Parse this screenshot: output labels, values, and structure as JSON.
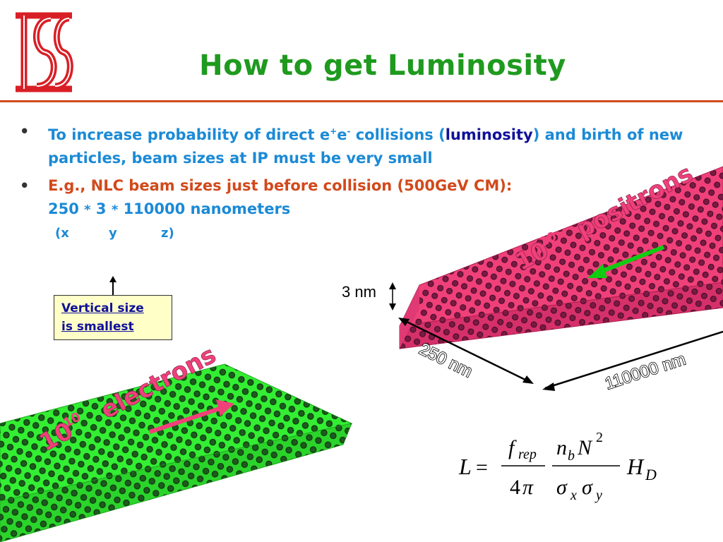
{
  "title": "How to get Luminosity",
  "logo": {
    "text": "ISS"
  },
  "bullets": [
    {
      "part1": "To increase probability of direct e",
      "sup1": "+",
      "part2": "e",
      "sup2": "-",
      "part3": " collisions (",
      "highlight": "luminosity",
      "part4": ") and birth of new particles, beam sizes at IP must be very small"
    },
    {
      "line1": "E.g., NLC beam sizes just before collision (500GeV CM):",
      "line2_a": "250",
      "line2_b": "3",
      "line2_c": "110000 nanometers",
      "star": "*"
    }
  ],
  "axes": {
    "x": "(x",
    "y": "y",
    "z": "z)"
  },
  "callout": {
    "line1": "Vertical size ",
    "line2": "is smallest"
  },
  "positrons": {
    "label": "10",
    "exp": "10",
    "word": "positrons"
  },
  "electrons": {
    "label": "10",
    "exp": "10",
    "word": "electrons"
  },
  "dims": {
    "height": "3 nm",
    "width": "250 nm",
    "length": "110000 nm"
  },
  "formula": {
    "L": "L",
    "eq": "=",
    "f": "f",
    "rep": "rep",
    "four": "4",
    "pi": "π",
    "n": "n",
    "b": "b",
    "N": "N",
    "two": "2",
    "sigma": "σ",
    "x": "x",
    "y": "y",
    "H": "H",
    "D": "D"
  },
  "colors": {
    "title": "#1f9a1f",
    "rule": "#d2491b",
    "positron_beam": "#f0407a",
    "electron_beam": "#33ee33",
    "label_pink": "#f0407a",
    "arrow_green": "#11cc11"
  }
}
